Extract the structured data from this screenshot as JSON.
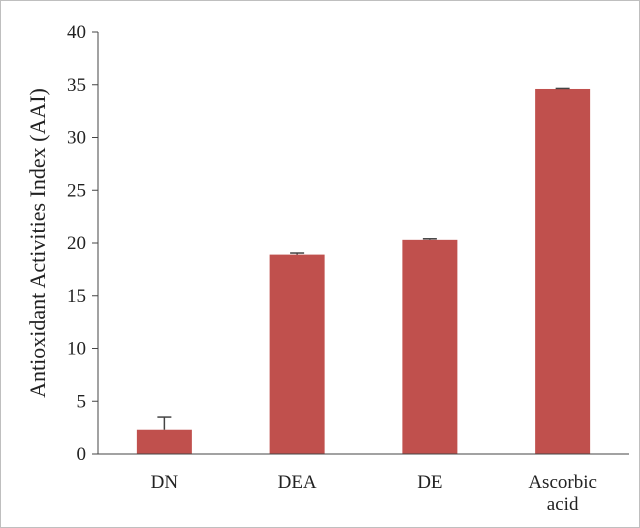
{
  "chart_data": {
    "type": "bar",
    "title": "",
    "xlabel": "",
    "ylabel": "Antioxidant Activities Index (AAI)",
    "ylim": [
      0,
      40
    ],
    "yticks": [
      0,
      5,
      10,
      15,
      20,
      25,
      30,
      35,
      40
    ],
    "grid": false,
    "legend": "none",
    "bar_color": "#c0504d",
    "error_color": "#444444",
    "categories": [
      [
        "DN"
      ],
      [
        "DEA"
      ],
      [
        "DE"
      ],
      [
        "Ascorbic",
        "acid"
      ]
    ],
    "values": [
      2.3,
      18.9,
      20.3,
      34.6
    ],
    "errors": [
      1.2,
      0.15,
      0.1,
      0.05
    ]
  }
}
